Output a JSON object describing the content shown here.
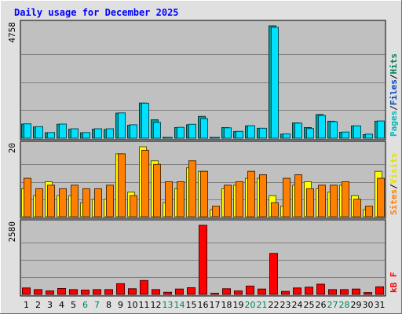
{
  "chart_data": {
    "type": "bar",
    "title": "Daily usage for December 2025",
    "categories": [
      "1",
      "2",
      "3",
      "4",
      "5",
      "6",
      "7",
      "8",
      "9",
      "10",
      "11",
      "12",
      "13",
      "14",
      "15",
      "16",
      "17",
      "18",
      "19",
      "20",
      "21",
      "22",
      "23",
      "24",
      "25",
      "26",
      "27",
      "28",
      "29",
      "30",
      "31"
    ],
    "weekend_days": [
      "6",
      "7",
      "13",
      "14",
      "20",
      "21",
      "27",
      "28"
    ],
    "panels": [
      {
        "id": "hits",
        "ymax_label": "4758",
        "ylim": [
          0,
          4758
        ],
        "series": [
          {
            "name": "Pages",
            "color": "#00a0a0",
            "values": [
              600,
              480,
              230,
              590,
              380,
              230,
              380,
              370,
              1060,
              550,
              1490,
              780,
              0,
              450,
              570,
              920,
              0,
              450,
              280,
              520,
              420,
              4758,
              170,
              650,
              450,
              1000,
              720,
              250,
              520,
              150,
              720
            ]
          },
          {
            "name": "Files",
            "color": "#00e0ff",
            "values": [
              610,
              490,
              240,
              600,
              400,
              240,
              400,
              400,
              1070,
              570,
              1480,
              670,
              10,
              460,
              590,
              830,
              20,
              440,
              290,
              530,
              420,
              4700,
              180,
              640,
              410,
              960,
              700,
              260,
              520,
              170,
              730
            ]
          }
        ],
        "right_labels": [
          {
            "text": "Pages",
            "color": "#00b8b8"
          },
          {
            "text": "Files",
            "color": "#0040c0"
          },
          {
            "text": "Hits",
            "color": "#008060"
          }
        ]
      },
      {
        "id": "visits",
        "ymax_label": "20",
        "ylim": [
          0,
          20
        ],
        "series": [
          {
            "name": "Visits",
            "color": "#ffff00",
            "values": [
              8,
              6,
              10,
              6,
              6,
              4,
              5,
              5,
              18,
              7,
              20,
              16,
              4,
              8,
              14,
              13,
              2,
              8,
              9,
              11,
              11,
              6,
              3,
              9,
              10,
              8,
              7,
              9,
              6,
              2,
              13
            ]
          },
          {
            "name": "Sites",
            "color": "#ff8000",
            "values": [
              11,
              8,
              9,
              8,
              9,
              8,
              8,
              9,
              18,
              6,
              19,
              15,
              10,
              10,
              16,
              13,
              3,
              9,
              10,
              13,
              12,
              4,
              11,
              12,
              8,
              9,
              9,
              10,
              5,
              3,
              11
            ]
          }
        ],
        "right_labels": [
          {
            "text": "Sites",
            "color": "#ff8000"
          },
          {
            "text": "Visits",
            "color": "#e0e000"
          }
        ]
      },
      {
        "id": "kbytes",
        "ymax_label": "2580",
        "ylim": [
          0,
          2580
        ],
        "series": [
          {
            "name": "kB F",
            "color": "#ff0000",
            "values": [
              240,
              180,
              130,
              220,
              180,
              160,
              180,
              180,
              400,
              210,
              520,
              180,
              80,
              200,
              250,
              2580,
              40,
              210,
              130,
              310,
              200,
              1530,
              110,
              240,
              270,
              380,
              180,
              180,
              200,
              70,
              280
            ]
          }
        ],
        "right_labels": [
          {
            "text": "kB F",
            "color": "#ff0000"
          }
        ]
      }
    ],
    "colors": {
      "plot_bg": "#c0c0c0",
      "outer_bg": "#e0e0e0",
      "title": "#0000ff",
      "weekday": "#000000",
      "weekend": "#00805a"
    }
  }
}
